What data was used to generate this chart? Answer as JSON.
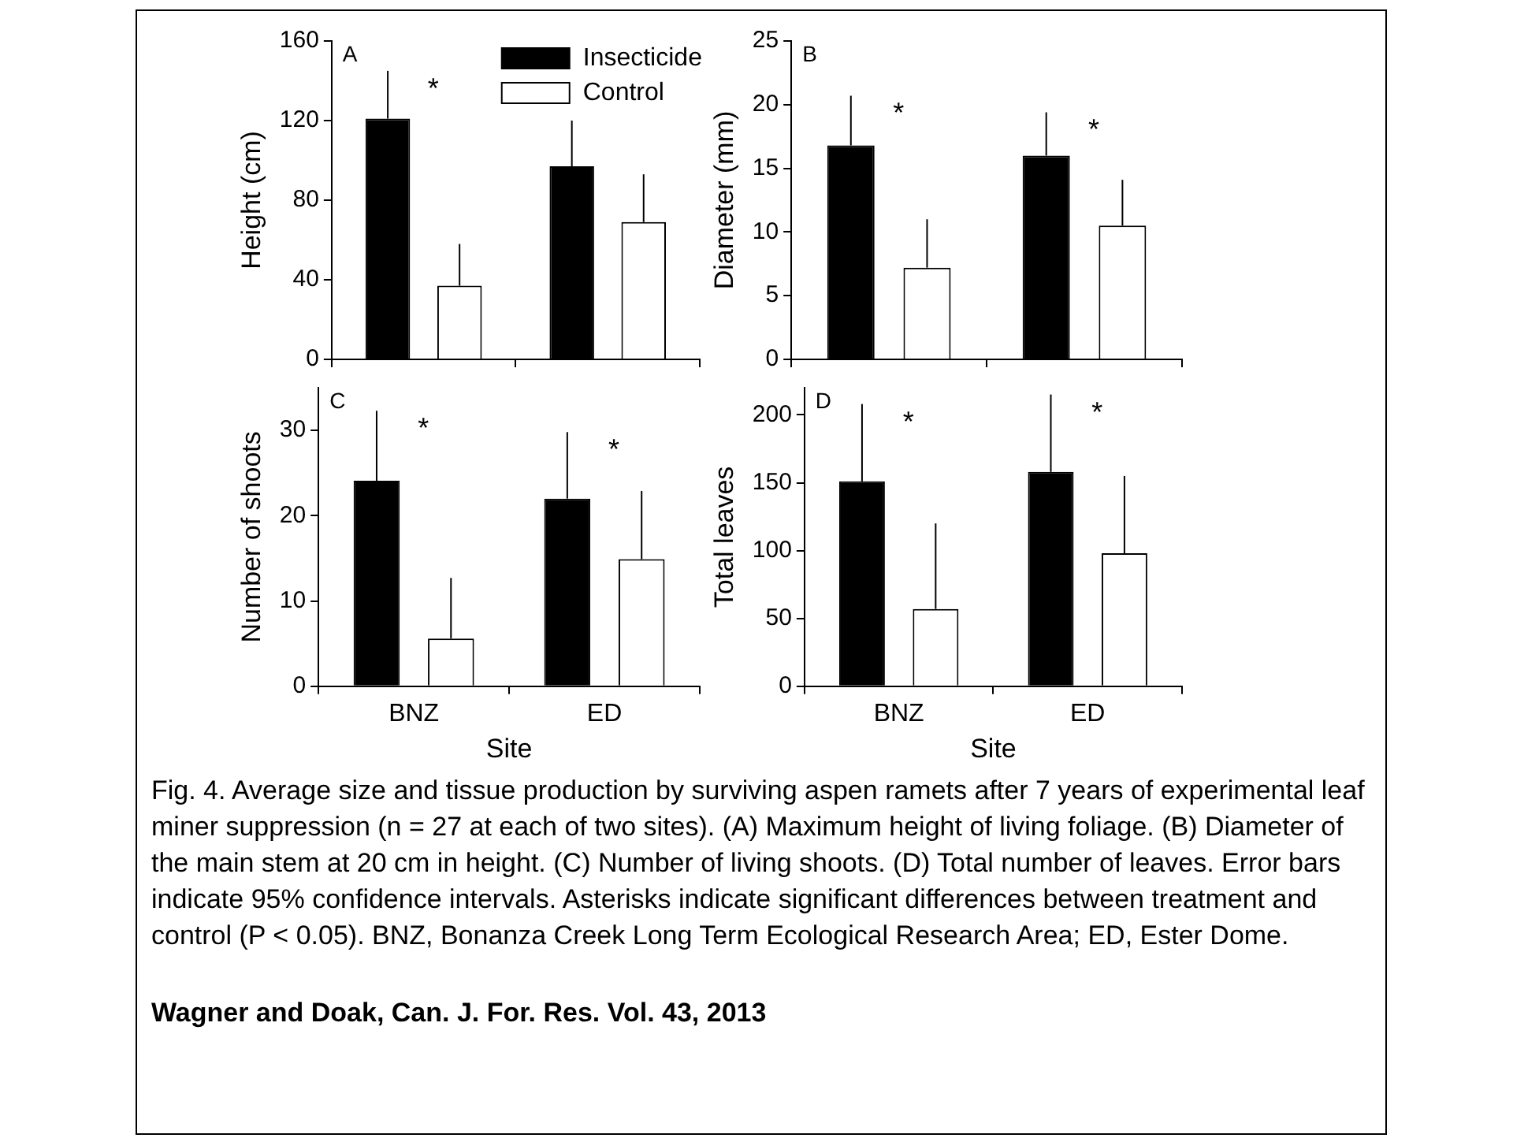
{
  "chart_data": [
    {
      "type": "bar",
      "title": "A",
      "ylabel": "Height (cm)",
      "categories": [
        null,
        null
      ],
      "ylim": [
        0,
        160
      ],
      "yticks": [
        0,
        40,
        80,
        120,
        160
      ],
      "tick_labels": "y",
      "legend": "top right",
      "series": [
        {
          "name": "Insecticide",
          "color": "#000000",
          "values": [
            121,
            97
          ],
          "errors": [
            [
              121,
              145
            ],
            [
              97,
              120
            ]
          ]
        },
        {
          "name": "Control",
          "color": "#ffffff",
          "values": [
            37,
            69
          ],
          "errors": [
            [
              37,
              58
            ],
            [
              69,
              93
            ]
          ]
        }
      ],
      "annotations": [
        "*"
      ]
    },
    {
      "type": "bar",
      "title": "B",
      "ylabel": "Diameter (mm)",
      "categories": [
        null,
        null
      ],
      "ylim": [
        0,
        25
      ],
      "yticks": [
        0,
        5,
        10,
        15,
        20,
        25
      ],
      "tick_labels": "y",
      "series": [
        {
          "color": "#000000",
          "values": [
            16.8,
            16.0
          ],
          "errors": [
            [
              16.8,
              20.7
            ],
            [
              16.0,
              19.4
            ]
          ]
        },
        {
          "color": "#ffffff",
          "values": [
            7.2,
            10.5
          ],
          "errors": [
            [
              7.2,
              11.0
            ],
            [
              10.5,
              14.1
            ]
          ]
        }
      ],
      "annotations": [
        "*",
        "*"
      ]
    },
    {
      "type": "bar",
      "title": "C",
      "ylabel": "Number of shoots",
      "xlabel": "Site",
      "categories": [
        "BNZ",
        "ED"
      ],
      "ylim": [
        0,
        35
      ],
      "yticks": [
        0,
        10,
        20,
        30
      ],
      "series": [
        {
          "color": "#000000",
          "values": [
            24.1,
            22.0
          ],
          "errors": [
            [
              24.1,
              32.3
            ],
            [
              22.0,
              29.8
            ]
          ]
        },
        {
          "color": "#ffffff",
          "values": [
            5.6,
            14.9
          ],
          "errors": [
            [
              5.6,
              12.7
            ],
            [
              14.9,
              22.9
            ]
          ]
        }
      ],
      "annotations": [
        "*",
        "*"
      ]
    },
    {
      "type": "bar",
      "title": "D",
      "ylabel": "Total leaves",
      "xlabel": "Site",
      "categories": [
        "BNZ",
        "ED"
      ],
      "ylim": [
        0,
        220
      ],
      "yticks": [
        0,
        50,
        100,
        150,
        200
      ],
      "series": [
        {
          "color": "#000000",
          "values": [
            151,
            158
          ],
          "errors": [
            [
              151,
              208
            ],
            [
              158,
              215
            ]
          ]
        },
        {
          "color": "#ffffff",
          "values": [
            57,
            98
          ],
          "errors": [
            [
              57,
              120
            ],
            [
              98,
              155
            ]
          ]
        }
      ],
      "annotations": [
        "*",
        "*"
      ]
    },
    {
      "type": "other",
      "annotations": [
        "Fig. 4. Average size and tissue production by surviving aspen ramets after 7 years of experimental leaf miner suppression (n = 27 at each of two sites). (A) Maximum height of living foliage. (B) Diameter of the main stem at 20 cm in height. (C) Number of living shoots. (D) Total number of leaves. Error bars indicate 95% confidence intervals. Asterisks indicate significant differences between treatment and control (P < 0.05). BNZ, Bonanza Creek Long Term Ecological Research Area; ED, Ester Dome.",
        "Wagner and Doak, Can. J. For. Res. Vol. 43, 2013"
      ]
    }
  ]
}
